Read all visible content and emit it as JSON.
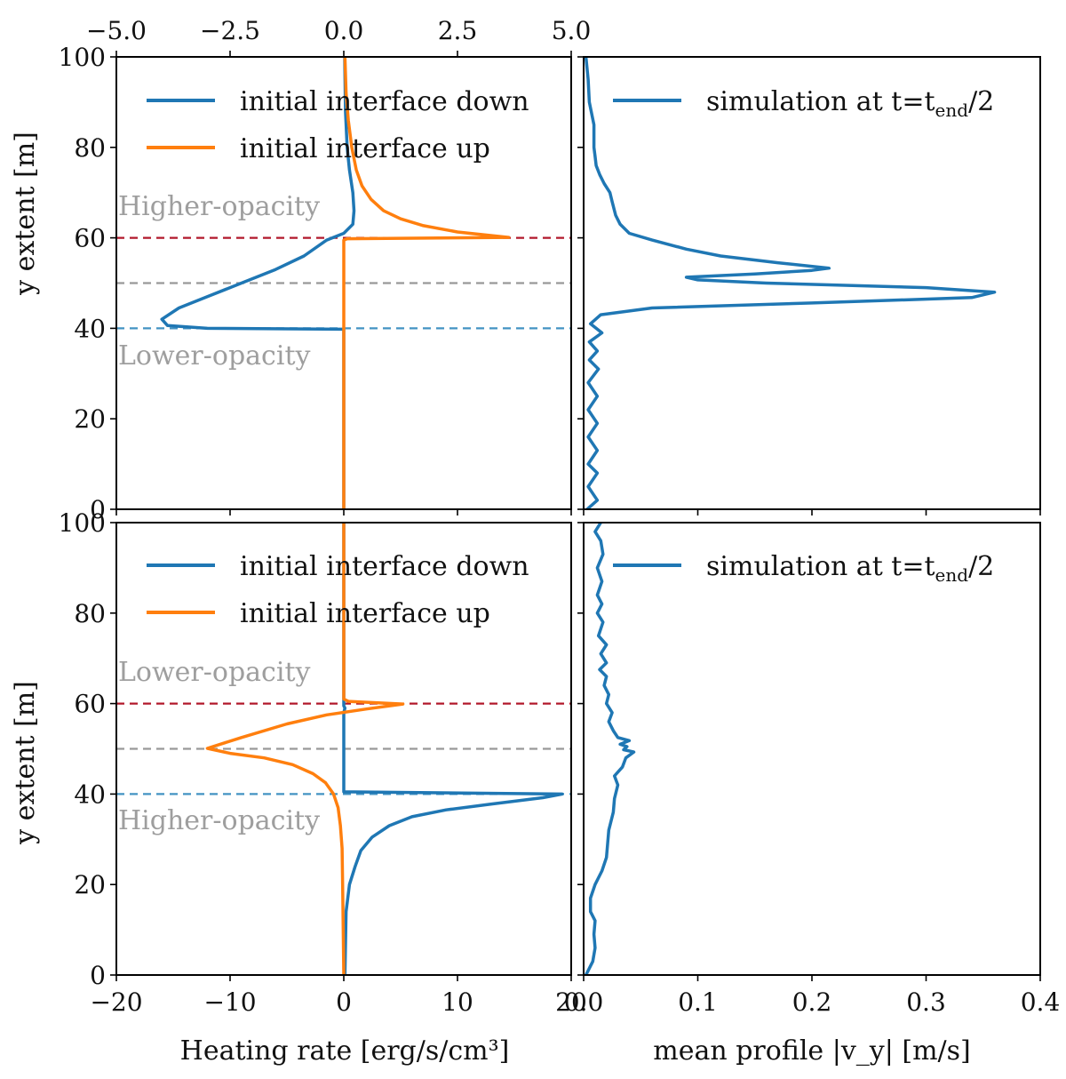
{
  "colors": {
    "blue": "#1f77b4",
    "orange": "#ff7f0e",
    "red_dashed": "#b2182b",
    "gray_dashed": "#999999",
    "blue_dashed": "#4393c3",
    "region_label": "#9e9e9e"
  },
  "chart_data": [
    {
      "id": "top-left",
      "type": "line",
      "xlabel": "",
      "ylabel": "y extent [m]",
      "top_xticklabels": [
        "−5.0",
        "−2.5",
        "0.0",
        "2.5",
        "5.0"
      ],
      "top_xlim": [
        -5,
        5
      ],
      "xlim": [
        -20,
        20
      ],
      "ylim": [
        0,
        100
      ],
      "yticklabels": [
        "0",
        "20",
        "40",
        "60",
        "80",
        "100"
      ],
      "legend": [
        "initial interface down",
        "initial interface up"
      ],
      "region_labels": {
        "upper": "Higher-opacity",
        "lower": "Lower-opacity"
      },
      "hlines": [
        {
          "y": 60,
          "color": "red"
        },
        {
          "y": 50,
          "color": "gray"
        },
        {
          "y": 40,
          "color": "blue"
        }
      ],
      "series": [
        {
          "name": "initial interface down",
          "points": [
            [
              0,
              0
            ],
            [
              0,
              39.8
            ],
            [
              -12,
              40
            ],
            [
              -15.5,
              40.6
            ],
            [
              -16,
              42
            ],
            [
              -14.5,
              44.5
            ],
            [
              -12,
              47
            ],
            [
              -9,
              50
            ],
            [
              -6,
              53
            ],
            [
              -3.5,
              56
            ],
            [
              -1.5,
              59.5
            ],
            [
              0,
              61
            ],
            [
              0.8,
              63
            ],
            [
              0.9,
              66
            ],
            [
              0.8,
              70
            ],
            [
              0.5,
              75
            ],
            [
              0.3,
              80
            ],
            [
              0.15,
              88
            ],
            [
              0.08,
              100
            ]
          ]
        },
        {
          "name": "initial interface up",
          "points": [
            [
              0,
              0
            ],
            [
              0,
              59.5
            ],
            [
              0.3,
              59.8
            ],
            [
              14.5,
              60.1
            ],
            [
              10,
              61.3
            ],
            [
              7,
              62.7
            ],
            [
              5,
              64.2
            ],
            [
              3.5,
              66
            ],
            [
              2.4,
              68.5
            ],
            [
              1.6,
              71.5
            ],
            [
              1.1,
              75
            ],
            [
              0.7,
              80
            ],
            [
              0.4,
              86
            ],
            [
              0.2,
              92
            ],
            [
              0.1,
              100
            ]
          ]
        }
      ]
    },
    {
      "id": "top-right",
      "type": "line",
      "xlim": [
        0,
        0.4
      ],
      "ylim": [
        0,
        100
      ],
      "legend": [
        "simulation at t=t_end/2"
      ],
      "series": [
        {
          "name": "simulation at t=t_end/2",
          "points": [
            [
              0.003,
              0
            ],
            [
              0.012,
              2
            ],
            [
              0.004,
              5
            ],
            [
              0.012,
              8
            ],
            [
              0.004,
              10
            ],
            [
              0.012,
              13
            ],
            [
              0.004,
              16
            ],
            [
              0.012,
              19
            ],
            [
              0.004,
              22
            ],
            [
              0.012,
              25
            ],
            [
              0.004,
              28
            ],
            [
              0.013,
              31
            ],
            [
              0.005,
              33
            ],
            [
              0.012,
              35
            ],
            [
              0.005,
              37
            ],
            [
              0.016,
              39
            ],
            [
              0.006,
              41
            ],
            [
              0.015,
              43
            ],
            [
              0.06,
              44.5
            ],
            [
              0.2,
              45.6
            ],
            [
              0.34,
              46.8
            ],
            [
              0.36,
              48
            ],
            [
              0.3,
              49
            ],
            [
              0.16,
              50
            ],
            [
              0.1,
              50.7
            ],
            [
              0.09,
              51.3
            ],
            [
              0.15,
              52
            ],
            [
              0.2,
              52.8
            ],
            [
              0.215,
              53.3
            ],
            [
              0.17,
              54.5
            ],
            [
              0.12,
              56
            ],
            [
              0.09,
              57.5
            ],
            [
              0.06,
              59.5
            ],
            [
              0.04,
              61
            ],
            [
              0.032,
              63
            ],
            [
              0.028,
              65
            ],
            [
              0.025,
              68
            ],
            [
              0.023,
              70
            ],
            [
              0.018,
              72
            ],
            [
              0.014,
              74
            ],
            [
              0.011,
              76
            ],
            [
              0.01,
              78
            ],
            [
              0.009,
              80
            ],
            [
              0.009,
              85
            ],
            [
              0.005,
              90
            ],
            [
              0.004,
              95
            ],
            [
              0.002,
              100
            ]
          ]
        }
      ]
    },
    {
      "id": "bottom-left",
      "type": "line",
      "xlabel": "Heating rate [erg/s/cm³]",
      "ylabel": "y extent [m]",
      "xlim": [
        -20,
        20
      ],
      "xticklabels": [
        "−20",
        "−10",
        "0",
        "10",
        "20"
      ],
      "ylim": [
        0,
        100
      ],
      "yticklabels": [
        "0",
        "20",
        "40",
        "60",
        "80",
        "100"
      ],
      "legend": [
        "initial interface down",
        "initial interface up"
      ],
      "region_labels": {
        "upper": "Lower-opacity",
        "lower": "Higher-opacity"
      },
      "hlines": [
        {
          "y": 60,
          "color": "red"
        },
        {
          "y": 50,
          "color": "gray"
        },
        {
          "y": 40,
          "color": "blue"
        }
      ],
      "series": [
        {
          "name": "initial interface down",
          "points": [
            [
              0,
              100
            ],
            [
              0,
              59.5
            ],
            [
              0.1,
              59
            ],
            [
              0,
              58
            ],
            [
              0,
              40.5
            ],
            [
              19.2,
              40
            ],
            [
              17.5,
              39.2
            ],
            [
              13,
              37.8
            ],
            [
              9,
              36.5
            ],
            [
              6,
              35
            ],
            [
              4,
              33
            ],
            [
              2.5,
              30.5
            ],
            [
              1.5,
              27.5
            ],
            [
              1,
              24
            ],
            [
              0.5,
              20
            ],
            [
              0.2,
              14
            ],
            [
              0.1,
              0
            ]
          ]
        },
        {
          "name": "initial interface up",
          "points": [
            [
              0,
              100
            ],
            [
              0,
              61
            ],
            [
              0.4,
              60.5
            ],
            [
              5.2,
              59.9
            ],
            [
              2,
              58.8
            ],
            [
              -1.5,
              57.5
            ],
            [
              -5,
              55.5
            ],
            [
              -9,
              52.5
            ],
            [
              -12,
              50.1
            ],
            [
              -10,
              49
            ],
            [
              -7,
              48
            ],
            [
              -4.5,
              46.5
            ],
            [
              -2.7,
              44.5
            ],
            [
              -1.6,
              42.5
            ],
            [
              -0.9,
              40
            ],
            [
              -0.5,
              37
            ],
            [
              -0.3,
              33
            ],
            [
              -0.15,
              28
            ],
            [
              -0.1,
              20
            ],
            [
              0,
              0
            ]
          ]
        }
      ]
    },
    {
      "id": "bottom-right",
      "type": "line",
      "xlabel": "mean profile |v_y| [m/s]",
      "xlim": [
        0,
        0.4
      ],
      "xticklabels": [
        "0.0",
        "0.1",
        "0.2",
        "0.3",
        "0.4"
      ],
      "ylim": [
        0,
        100
      ],
      "legend": [
        "simulation at t=t_end/2"
      ],
      "series": [
        {
          "name": "simulation at t=t_end/2",
          "points": [
            [
              0.002,
              0
            ],
            [
              0.008,
              3
            ],
            [
              0.01,
              6
            ],
            [
              0.009,
              9
            ],
            [
              0.01,
              12
            ],
            [
              0.006,
              14
            ],
            [
              0.006,
              17
            ],
            [
              0.01,
              20
            ],
            [
              0.016,
              23
            ],
            [
              0.02,
              26
            ],
            [
              0.021,
              29
            ],
            [
              0.022,
              32
            ],
            [
              0.026,
              36
            ],
            [
              0.027,
              39
            ],
            [
              0.03,
              42
            ],
            [
              0.027,
              44
            ],
            [
              0.034,
              46
            ],
            [
              0.037,
              48
            ],
            [
              0.044,
              49.3
            ],
            [
              0.035,
              49.8
            ],
            [
              0.038,
              50.5
            ],
            [
              0.032,
              51
            ],
            [
              0.04,
              51.8
            ],
            [
              0.03,
              52.5
            ],
            [
              0.026,
              54
            ],
            [
              0.022,
              56
            ],
            [
              0.025,
              58
            ],
            [
              0.02,
              60
            ],
            [
              0.022,
              62
            ],
            [
              0.018,
              64
            ],
            [
              0.02,
              66
            ],
            [
              0.014,
              67.5
            ],
            [
              0.02,
              69
            ],
            [
              0.015,
              71
            ],
            [
              0.02,
              73
            ],
            [
              0.013,
              75
            ],
            [
              0.017,
              78
            ],
            [
              0.012,
              80
            ],
            [
              0.016,
              82
            ],
            [
              0.012,
              84
            ],
            [
              0.016,
              87
            ],
            [
              0.012,
              90
            ],
            [
              0.017,
              93
            ],
            [
              0.015,
              96
            ],
            [
              0.01,
              98
            ],
            [
              0.015,
              100
            ]
          ]
        }
      ]
    }
  ]
}
